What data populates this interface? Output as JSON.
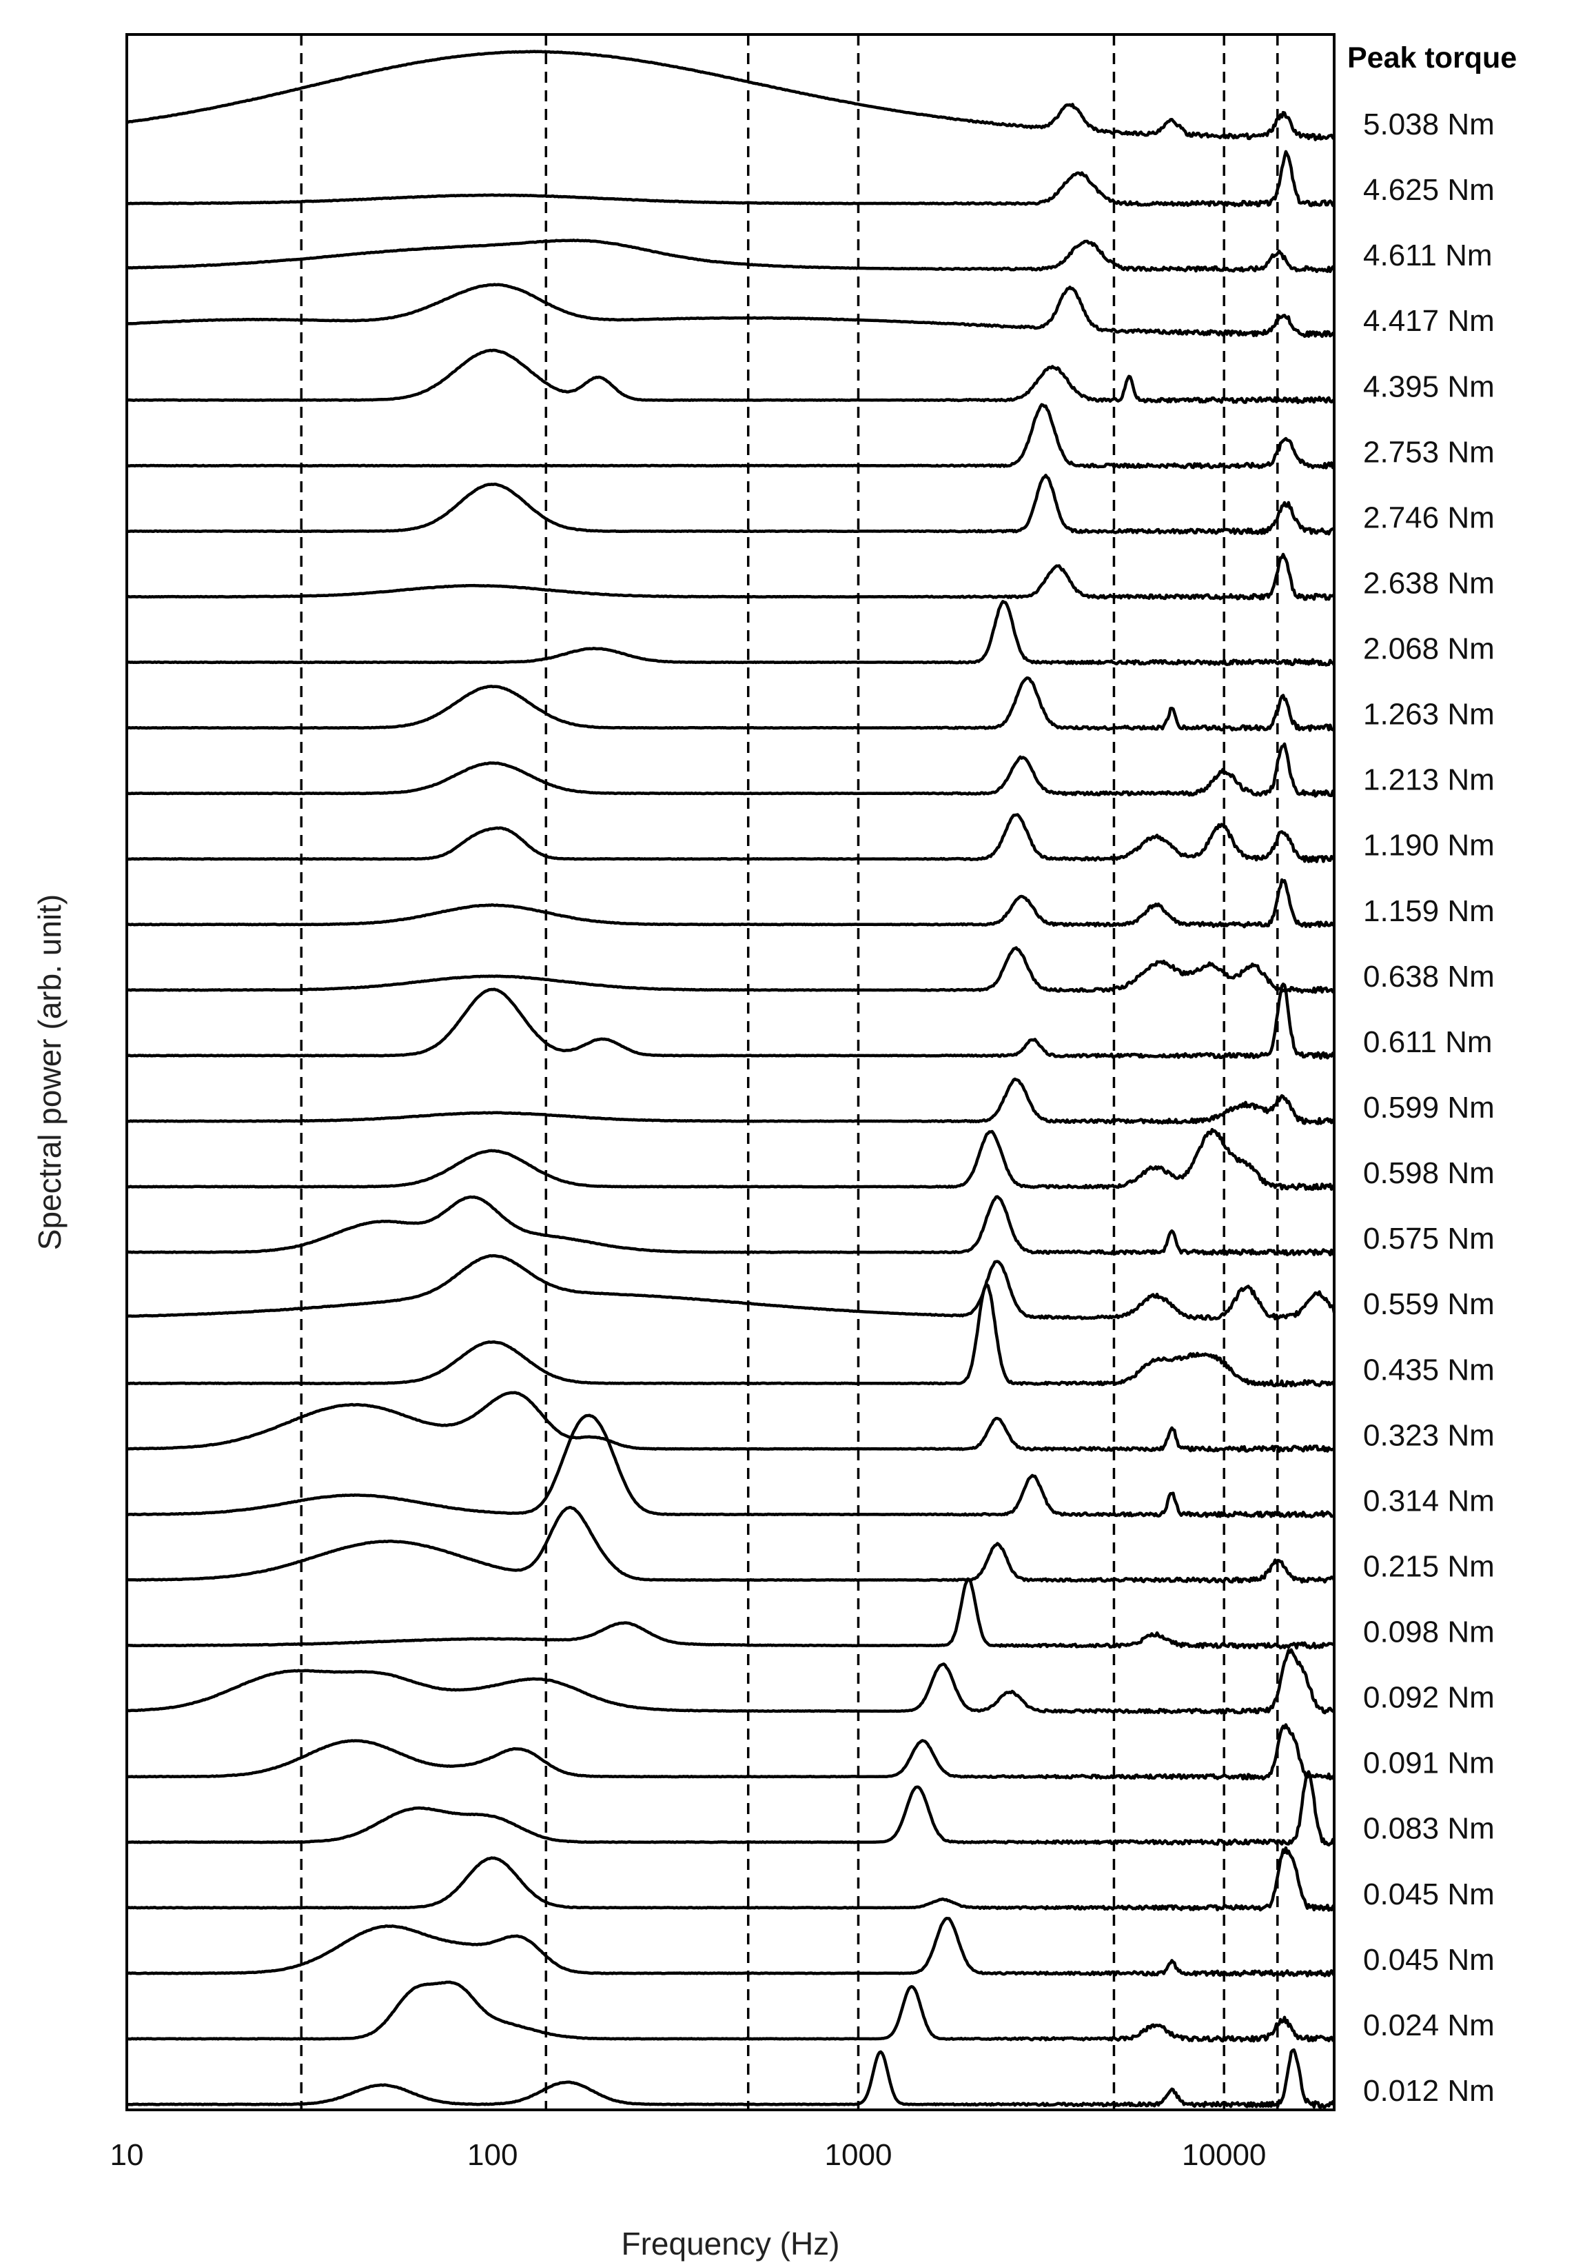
{
  "chart_data": {
    "type": "line",
    "title": "",
    "xlabel": "Frequency (Hz)",
    "ylabel": "Spectral power (arb. unit)",
    "x_scale": "log",
    "xlim": [
      10,
      20000
    ],
    "x_ticks": [
      {
        "value": 10,
        "label": "10"
      },
      {
        "value": 100,
        "label": "100"
      },
      {
        "value": 1000,
        "label": "1000"
      },
      {
        "value": 10000,
        "label": "10000"
      }
    ],
    "reference_lines_hz": [
      30,
      140,
      500,
      1000,
      5000,
      10000,
      14000
    ],
    "legend_title": "Peak torque",
    "legend_placement": "right",
    "grid": false,
    "line_color": "#000000",
    "series": [
      {
        "name": "5.038 Nm",
        "peaks": [
          {
            "f": 105,
            "a": 0.9,
            "w": 0.55
          },
          {
            "f": 200,
            "a": 0.7,
            "w": 0.7
          },
          {
            "f": 3800,
            "a": 0.45,
            "w": 0.03
          },
          {
            "f": 7200,
            "a": 0.25,
            "w": 0.02
          },
          {
            "f": 14500,
            "a": 0.4,
            "w": 0.02
          }
        ]
      },
      {
        "name": "4.625 Nm",
        "peaks": [
          {
            "f": 100,
            "a": 0.15,
            "w": 0.3
          },
          {
            "f": 4000,
            "a": 0.55,
            "w": 0.04
          },
          {
            "f": 14800,
            "a": 0.9,
            "w": 0.015
          }
        ]
      },
      {
        "name": "4.611 Nm",
        "peaks": [
          {
            "f": 95,
            "a": 0.4,
            "w": 0.4
          },
          {
            "f": 190,
            "a": 0.2,
            "w": 0.15
          },
          {
            "f": 4200,
            "a": 0.5,
            "w": 0.04
          },
          {
            "f": 14000,
            "a": 0.3,
            "w": 0.02
          }
        ]
      },
      {
        "name": "4.417 Nm",
        "peaks": [
          {
            "f": 20,
            "a": 0.25,
            "w": 0.4
          },
          {
            "f": 88,
            "a": 0.45,
            "w": 0.12
          },
          {
            "f": 115,
            "a": 0.35,
            "w": 0.1
          },
          {
            "f": 500,
            "a": 0.3,
            "w": 0.6
          },
          {
            "f": 3800,
            "a": 0.75,
            "w": 0.03
          },
          {
            "f": 14500,
            "a": 0.35,
            "w": 0.02
          }
        ]
      },
      {
        "name": "4.395 Nm",
        "peaks": [
          {
            "f": 100,
            "a": 0.9,
            "w": 0.1
          },
          {
            "f": 195,
            "a": 0.4,
            "w": 0.04
          },
          {
            "f": 3400,
            "a": 0.6,
            "w": 0.04
          },
          {
            "f": 5500,
            "a": 0.45,
            "w": 0.01
          }
        ]
      },
      {
        "name": "2.753 Nm",
        "peaks": [
          {
            "f": 3200,
            "a": 1.1,
            "w": 0.03
          },
          {
            "f": 14800,
            "a": 0.5,
            "w": 0.02
          }
        ]
      },
      {
        "name": "2.746 Nm",
        "peaks": [
          {
            "f": 100,
            "a": 0.85,
            "w": 0.09
          },
          {
            "f": 3250,
            "a": 1.0,
            "w": 0.025
          },
          {
            "f": 14800,
            "a": 0.5,
            "w": 0.02
          }
        ]
      },
      {
        "name": "2.638 Nm",
        "peaks": [
          {
            "f": 90,
            "a": 0.2,
            "w": 0.2
          },
          {
            "f": 3500,
            "a": 0.55,
            "w": 0.03
          },
          {
            "f": 14500,
            "a": 0.75,
            "w": 0.015
          }
        ]
      },
      {
        "name": "2.068 Nm",
        "peaks": [
          {
            "f": 190,
            "a": 0.25,
            "w": 0.08
          },
          {
            "f": 2500,
            "a": 1.1,
            "w": 0.025
          }
        ]
      },
      {
        "name": "1.263 Nm",
        "peaks": [
          {
            "f": 100,
            "a": 0.75,
            "w": 0.1
          },
          {
            "f": 2900,
            "a": 0.9,
            "w": 0.03
          },
          {
            "f": 7200,
            "a": 0.35,
            "w": 0.01
          },
          {
            "f": 14500,
            "a": 0.55,
            "w": 0.015
          }
        ]
      },
      {
        "name": "1.213 Nm",
        "peaks": [
          {
            "f": 100,
            "a": 0.55,
            "w": 0.1
          },
          {
            "f": 2800,
            "a": 0.65,
            "w": 0.03
          },
          {
            "f": 10000,
            "a": 0.4,
            "w": 0.03
          },
          {
            "f": 14500,
            "a": 0.9,
            "w": 0.015
          }
        ]
      },
      {
        "name": "1.190 Nm",
        "peaks": [
          {
            "f": 90,
            "a": 0.35,
            "w": 0.05
          },
          {
            "f": 110,
            "a": 0.45,
            "w": 0.05
          },
          {
            "f": 2700,
            "a": 0.8,
            "w": 0.03
          },
          {
            "f": 6500,
            "a": 0.4,
            "w": 0.04
          },
          {
            "f": 9800,
            "a": 0.6,
            "w": 0.03
          },
          {
            "f": 14500,
            "a": 0.5,
            "w": 0.02
          }
        ]
      },
      {
        "name": "1.159 Nm",
        "peaks": [
          {
            "f": 100,
            "a": 0.35,
            "w": 0.15
          },
          {
            "f": 2800,
            "a": 0.5,
            "w": 0.03
          },
          {
            "f": 6500,
            "a": 0.35,
            "w": 0.03
          },
          {
            "f": 14500,
            "a": 0.8,
            "w": 0.015
          }
        ]
      },
      {
        "name": "0.638 Nm",
        "peaks": [
          {
            "f": 100,
            "a": 0.25,
            "w": 0.2
          },
          {
            "f": 2700,
            "a": 0.75,
            "w": 0.03
          },
          {
            "f": 6700,
            "a": 0.5,
            "w": 0.05
          },
          {
            "f": 9200,
            "a": 0.45,
            "w": 0.04
          },
          {
            "f": 12000,
            "a": 0.45,
            "w": 0.03
          }
        ]
      },
      {
        "name": "0.611 Nm",
        "peaks": [
          {
            "f": 100,
            "a": 1.2,
            "w": 0.08
          },
          {
            "f": 200,
            "a": 0.3,
            "w": 0.05
          },
          {
            "f": 3000,
            "a": 0.3,
            "w": 0.02
          },
          {
            "f": 14500,
            "a": 1.3,
            "w": 0.015
          }
        ]
      },
      {
        "name": "0.599 Nm",
        "peaks": [
          {
            "f": 100,
            "a": 0.15,
            "w": 0.2
          },
          {
            "f": 2700,
            "a": 0.75,
            "w": 0.03
          },
          {
            "f": 11500,
            "a": 0.3,
            "w": 0.05
          },
          {
            "f": 14500,
            "a": 0.4,
            "w": 0.02
          }
        ]
      },
      {
        "name": "0.598 Nm",
        "peaks": [
          {
            "f": 100,
            "a": 0.65,
            "w": 0.1
          },
          {
            "f": 2300,
            "a": 1.0,
            "w": 0.03
          },
          {
            "f": 6500,
            "a": 0.35,
            "w": 0.04
          },
          {
            "f": 9300,
            "a": 1.0,
            "w": 0.04
          },
          {
            "f": 11500,
            "a": 0.35,
            "w": 0.03
          }
        ]
      },
      {
        "name": "0.575 Nm",
        "peaks": [
          {
            "f": 50,
            "a": 0.55,
            "w": 0.13
          },
          {
            "f": 88,
            "a": 0.75,
            "w": 0.07
          },
          {
            "f": 130,
            "a": 0.3,
            "w": 0.15
          },
          {
            "f": 2400,
            "a": 1.0,
            "w": 0.03
          },
          {
            "f": 7200,
            "a": 0.4,
            "w": 0.01
          }
        ]
      },
      {
        "name": "0.559 Nm",
        "peaks": [
          {
            "f": 100,
            "a": 0.7,
            "w": 0.09
          },
          {
            "f": 150,
            "a": 0.45,
            "w": 0.5
          },
          {
            "f": 2400,
            "a": 1.0,
            "w": 0.03
          },
          {
            "f": 6500,
            "a": 0.4,
            "w": 0.04
          },
          {
            "f": 11500,
            "a": 0.55,
            "w": 0.03
          },
          {
            "f": 18000,
            "a": 0.45,
            "w": 0.03
          }
        ]
      },
      {
        "name": "0.435 Nm",
        "peaks": [
          {
            "f": 100,
            "a": 0.75,
            "w": 0.09
          },
          {
            "f": 2200,
            "a": 1.1,
            "w": 0.02
          },
          {
            "f": 2300,
            "a": 0.9,
            "w": 0.02
          },
          {
            "f": 6500,
            "a": 0.4,
            "w": 0.04
          },
          {
            "f": 8000,
            "a": 0.4,
            "w": 0.04
          },
          {
            "f": 9500,
            "a": 0.4,
            "w": 0.04
          }
        ]
      },
      {
        "name": "0.323 Nm",
        "peaks": [
          {
            "f": 42,
            "a": 0.8,
            "w": 0.18
          },
          {
            "f": 100,
            "a": 0.4,
            "w": 0.08
          },
          {
            "f": 120,
            "a": 0.7,
            "w": 0.07
          },
          {
            "f": 190,
            "a": 0.2,
            "w": 0.05
          },
          {
            "f": 2400,
            "a": 0.55,
            "w": 0.025
          },
          {
            "f": 7200,
            "a": 0.4,
            "w": 0.01
          }
        ]
      },
      {
        "name": "0.314 Nm",
        "peaks": [
          {
            "f": 42,
            "a": 0.35,
            "w": 0.18
          },
          {
            "f": 170,
            "a": 1.2,
            "w": 0.05
          },
          {
            "f": 200,
            "a": 1.1,
            "w": 0.05
          },
          {
            "f": 3000,
            "a": 0.7,
            "w": 0.025
          },
          {
            "f": 7200,
            "a": 0.4,
            "w": 0.01
          }
        ]
      },
      {
        "name": "0.215 Nm",
        "peaks": [
          {
            "f": 52,
            "a": 0.7,
            "w": 0.2
          },
          {
            "f": 160,
            "a": 1.15,
            "w": 0.05
          },
          {
            "f": 190,
            "a": 0.35,
            "w": 0.05
          },
          {
            "f": 2400,
            "a": 0.65,
            "w": 0.025
          },
          {
            "f": 14000,
            "a": 0.35,
            "w": 0.02
          }
        ]
      },
      {
        "name": "0.098 Nm",
        "peaks": [
          {
            "f": 100,
            "a": 0.12,
            "w": 0.3
          },
          {
            "f": 230,
            "a": 0.35,
            "w": 0.06
          },
          {
            "f": 2000,
            "a": 1.2,
            "w": 0.02
          },
          {
            "f": 6500,
            "a": 0.2,
            "w": 0.03
          }
        ]
      },
      {
        "name": "0.092 Nm",
        "peaks": [
          {
            "f": 28,
            "a": 0.7,
            "w": 0.15
          },
          {
            "f": 50,
            "a": 0.4,
            "w": 0.1
          },
          {
            "f": 100,
            "a": 0.35,
            "w": 0.2
          },
          {
            "f": 140,
            "a": 0.3,
            "w": 0.1
          },
          {
            "f": 1700,
            "a": 0.85,
            "w": 0.03
          },
          {
            "f": 2600,
            "a": 0.35,
            "w": 0.03
          },
          {
            "f": 15000,
            "a": 1.0,
            "w": 0.02
          },
          {
            "f": 16500,
            "a": 0.6,
            "w": 0.02
          }
        ]
      },
      {
        "name": "0.091 Nm",
        "peaks": [
          {
            "f": 42,
            "a": 0.65,
            "w": 0.13
          },
          {
            "f": 100,
            "a": 0.2,
            "w": 0.1
          },
          {
            "f": 120,
            "a": 0.35,
            "w": 0.06
          },
          {
            "f": 1500,
            "a": 0.65,
            "w": 0.03
          },
          {
            "f": 14500,
            "a": 0.8,
            "w": 0.015
          },
          {
            "f": 15500,
            "a": 0.6,
            "w": 0.015
          }
        ]
      },
      {
        "name": "0.083 Nm",
        "peaks": [
          {
            "f": 62,
            "a": 0.6,
            "w": 0.1
          },
          {
            "f": 100,
            "a": 0.4,
            "w": 0.08
          },
          {
            "f": 1450,
            "a": 1.0,
            "w": 0.03
          },
          {
            "f": 17000,
            "a": 1.3,
            "w": 0.015
          }
        ]
      },
      {
        "name": "0.045 Nm",
        "peaks": [
          {
            "f": 100,
            "a": 0.9,
            "w": 0.07
          },
          {
            "f": 1700,
            "a": 0.15,
            "w": 0.03
          },
          {
            "f": 14500,
            "a": 0.9,
            "w": 0.015
          },
          {
            "f": 15500,
            "a": 0.7,
            "w": 0.015
          }
        ]
      },
      {
        "name": "0.045 Nm",
        "peaks": [
          {
            "f": 52,
            "a": 0.85,
            "w": 0.13
          },
          {
            "f": 90,
            "a": 0.3,
            "w": 0.08
          },
          {
            "f": 120,
            "a": 0.55,
            "w": 0.06
          },
          {
            "f": 1750,
            "a": 1.0,
            "w": 0.03
          },
          {
            "f": 7200,
            "a": 0.2,
            "w": 0.01
          }
        ]
      },
      {
        "name": "0.024 Nm",
        "peaks": [
          {
            "f": 62,
            "a": 0.85,
            "w": 0.06
          },
          {
            "f": 80,
            "a": 0.65,
            "w": 0.05
          },
          {
            "f": 100,
            "a": 0.3,
            "w": 0.1
          },
          {
            "f": 1400,
            "a": 0.95,
            "w": 0.025
          },
          {
            "f": 6500,
            "a": 0.25,
            "w": 0.03
          },
          {
            "f": 14500,
            "a": 0.35,
            "w": 0.02
          }
        ]
      },
      {
        "name": "0.012 Nm",
        "peaks": [
          {
            "f": 50,
            "a": 0.35,
            "w": 0.08
          },
          {
            "f": 160,
            "a": 0.4,
            "w": 0.07
          },
          {
            "f": 1150,
            "a": 0.95,
            "w": 0.02
          },
          {
            "f": 7200,
            "a": 0.25,
            "w": 0.015
          },
          {
            "f": 15500,
            "a": 1.0,
            "w": 0.015
          }
        ]
      }
    ]
  }
}
